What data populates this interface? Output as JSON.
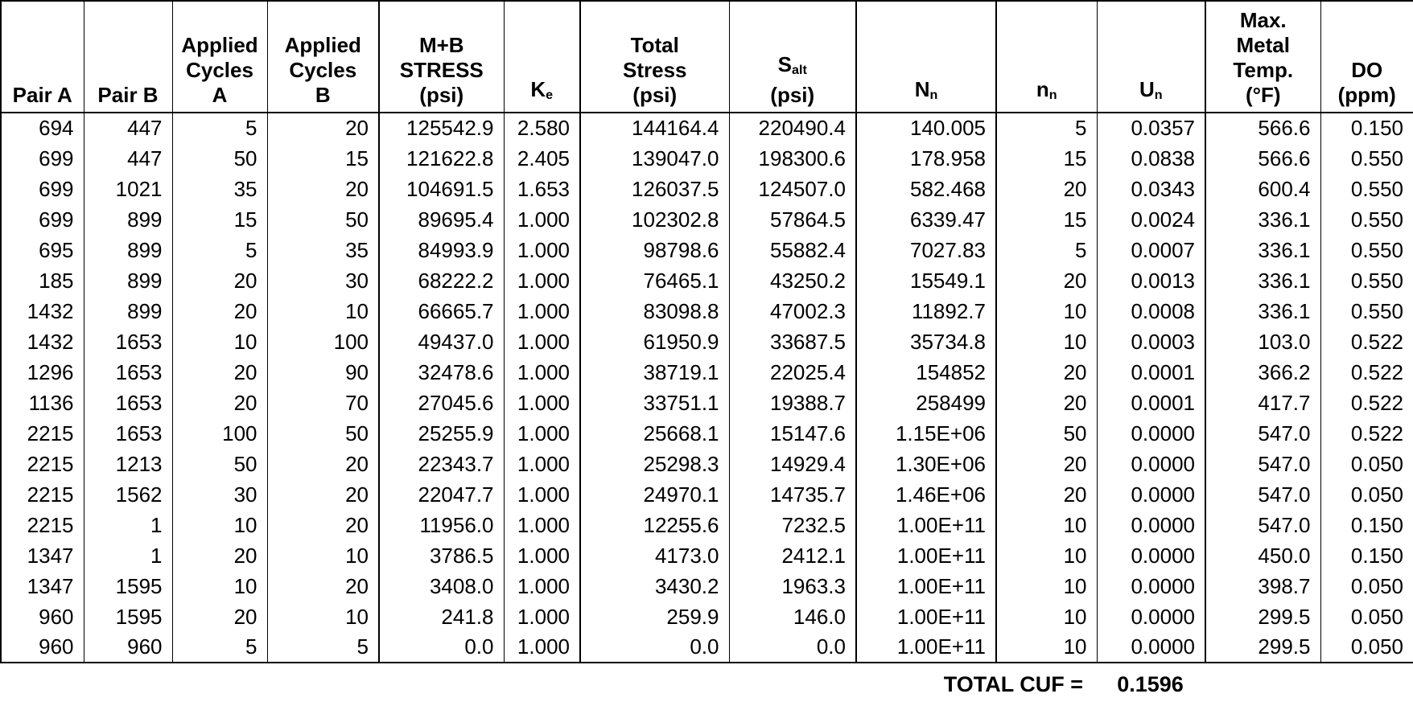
{
  "colors": {
    "background": "#ffffff",
    "text": "#000000",
    "border": "#000000"
  },
  "table": {
    "columns": [
      {
        "id": "pair_a",
        "label_lines": [
          {
            "t": "Pair A"
          }
        ]
      },
      {
        "id": "pair_b",
        "label_lines": [
          {
            "t": "Pair B"
          }
        ]
      },
      {
        "id": "applied_cycles_a",
        "label_lines": [
          {
            "t": "Applied"
          },
          {
            "t": "Cycles"
          },
          {
            "t": "A"
          }
        ]
      },
      {
        "id": "applied_cycles_b",
        "label_lines": [
          {
            "t": "Applied"
          },
          {
            "t": "Cycles"
          },
          {
            "t": "B"
          }
        ]
      },
      {
        "id": "mb_stress",
        "label_lines": [
          {
            "t": "M+B"
          },
          {
            "t": "STRESS"
          },
          {
            "t": "(psi)"
          }
        ]
      },
      {
        "id": "ke",
        "label_lines": [
          {
            "t": "K",
            "sub": "e"
          }
        ]
      },
      {
        "id": "total_stress",
        "label_lines": [
          {
            "t": "Total"
          },
          {
            "t": "Stress"
          },
          {
            "t": "(psi)"
          }
        ]
      },
      {
        "id": "s_alt",
        "label_lines": [
          {
            "t": "S",
            "sub": "alt"
          },
          {
            "t": "(psi)"
          }
        ]
      },
      {
        "id": "n_allowable",
        "label_lines": [
          {
            "t": "N",
            "sub": "n"
          }
        ]
      },
      {
        "id": "n_applied",
        "label_lines": [
          {
            "t": "n",
            "sub": "n"
          }
        ]
      },
      {
        "id": "u_n",
        "label_lines": [
          {
            "t": "U",
            "sub": "n"
          }
        ]
      },
      {
        "id": "max_metal_temp",
        "label_lines": [
          {
            "t": "Max."
          },
          {
            "t": "Metal"
          },
          {
            "t": "Temp."
          },
          {
            "t": "(°F)"
          }
        ]
      },
      {
        "id": "do_ppm",
        "label_lines": [
          {
            "t": "DO"
          },
          {
            "t": "(ppm)"
          }
        ]
      }
    ],
    "rows": [
      [
        "694",
        "447",
        "5",
        "20",
        "125542.9",
        "2.580",
        "144164.4",
        "220490.4",
        "140.005",
        "5",
        "0.0357",
        "566.6",
        "0.150"
      ],
      [
        "699",
        "447",
        "50",
        "15",
        "121622.8",
        "2.405",
        "139047.0",
        "198300.6",
        "178.958",
        "15",
        "0.0838",
        "566.6",
        "0.550"
      ],
      [
        "699",
        "1021",
        "35",
        "20",
        "104691.5",
        "1.653",
        "126037.5",
        "124507.0",
        "582.468",
        "20",
        "0.0343",
        "600.4",
        "0.550"
      ],
      [
        "699",
        "899",
        "15",
        "50",
        "89695.4",
        "1.000",
        "102302.8",
        "57864.5",
        "6339.47",
        "15",
        "0.0024",
        "336.1",
        "0.550"
      ],
      [
        "695",
        "899",
        "5",
        "35",
        "84993.9",
        "1.000",
        "98798.6",
        "55882.4",
        "7027.83",
        "5",
        "0.0007",
        "336.1",
        "0.550"
      ],
      [
        "185",
        "899",
        "20",
        "30",
        "68222.2",
        "1.000",
        "76465.1",
        "43250.2",
        "15549.1",
        "20",
        "0.0013",
        "336.1",
        "0.550"
      ],
      [
        "1432",
        "899",
        "20",
        "10",
        "66665.7",
        "1.000",
        "83098.8",
        "47002.3",
        "11892.7",
        "10",
        "0.0008",
        "336.1",
        "0.550"
      ],
      [
        "1432",
        "1653",
        "10",
        "100",
        "49437.0",
        "1.000",
        "61950.9",
        "33687.5",
        "35734.8",
        "10",
        "0.0003",
        "103.0",
        "0.522"
      ],
      [
        "1296",
        "1653",
        "20",
        "90",
        "32478.6",
        "1.000",
        "38719.1",
        "22025.4",
        "154852",
        "20",
        "0.0001",
        "366.2",
        "0.522"
      ],
      [
        "1136",
        "1653",
        "20",
        "70",
        "27045.6",
        "1.000",
        "33751.1",
        "19388.7",
        "258499",
        "20",
        "0.0001",
        "417.7",
        "0.522"
      ],
      [
        "2215",
        "1653",
        "100",
        "50",
        "25255.9",
        "1.000",
        "25668.1",
        "15147.6",
        "1.15E+06",
        "50",
        "0.0000",
        "547.0",
        "0.522"
      ],
      [
        "2215",
        "1213",
        "50",
        "20",
        "22343.7",
        "1.000",
        "25298.3",
        "14929.4",
        "1.30E+06",
        "20",
        "0.0000",
        "547.0",
        "0.050"
      ],
      [
        "2215",
        "1562",
        "30",
        "20",
        "22047.7",
        "1.000",
        "24970.1",
        "14735.7",
        "1.46E+06",
        "20",
        "0.0000",
        "547.0",
        "0.050"
      ],
      [
        "2215",
        "1",
        "10",
        "20",
        "11956.0",
        "1.000",
        "12255.6",
        "7232.5",
        "1.00E+11",
        "10",
        "0.0000",
        "547.0",
        "0.150"
      ],
      [
        "1347",
        "1",
        "20",
        "10",
        "3786.5",
        "1.000",
        "4173.0",
        "2412.1",
        "1.00E+11",
        "10",
        "0.0000",
        "450.0",
        "0.150"
      ],
      [
        "1347",
        "1595",
        "10",
        "20",
        "3408.0",
        "1.000",
        "3430.2",
        "1963.3",
        "1.00E+11",
        "10",
        "0.0000",
        "398.7",
        "0.050"
      ],
      [
        "960",
        "1595",
        "20",
        "10",
        "241.8",
        "1.000",
        "259.9",
        "146.0",
        "1.00E+11",
        "10",
        "0.0000",
        "299.5",
        "0.050"
      ],
      [
        "960",
        "960",
        "5",
        "5",
        "0.0",
        "1.000",
        "0.0",
        "0.0",
        "1.00E+11",
        "10",
        "0.0000",
        "299.5",
        "0.050"
      ]
    ]
  },
  "footer": {
    "label": "TOTAL CUF =",
    "value": "0.1596"
  }
}
